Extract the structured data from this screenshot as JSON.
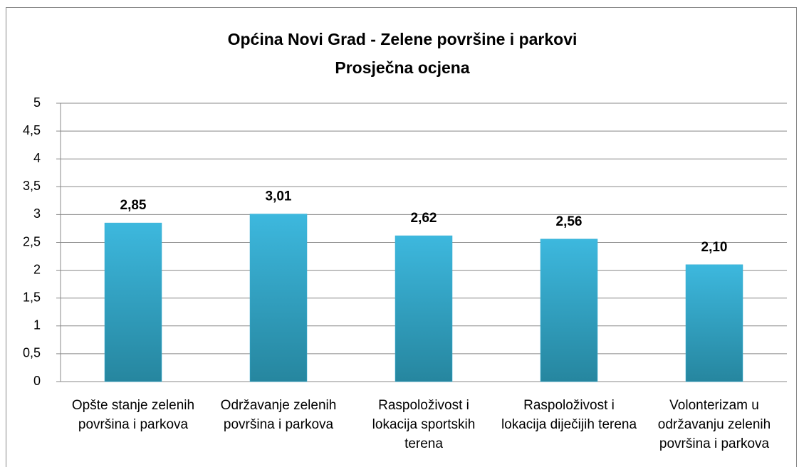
{
  "chart_data": {
    "type": "bar",
    "title": "Općina Novi Grad - Zelene površine i parkovi",
    "subtitle": "Prosječna ocjena",
    "categories": [
      "Opšte stanje zelenih površina i parkova",
      "Održavanje zelenih površina i parkova",
      "Raspoloživost i lokacija sportskih terena",
      "Raspoloživost i lokacija diječijih terena",
      "Volonterizam u održavanju zelenih površina i parkova"
    ],
    "values": [
      2.85,
      3.01,
      2.62,
      2.56,
      2.1
    ],
    "value_labels": [
      "2,85",
      "3,01",
      "2,62",
      "2,56",
      "2,10"
    ],
    "color": "#35aed2",
    "ylim": [
      0,
      5
    ],
    "yticks": [
      0,
      {
        "value": 0.5,
        "label": "0,5"
      },
      1,
      {
        "value": 1.5,
        "label": "1,5"
      },
      2,
      {
        "value": 2.5,
        "label": "2,5"
      },
      3,
      {
        "value": 3.5,
        "label": "3,5"
      },
      4,
      {
        "value": 4.5,
        "label": "4,5"
      },
      5
    ],
    "grid": true
  }
}
